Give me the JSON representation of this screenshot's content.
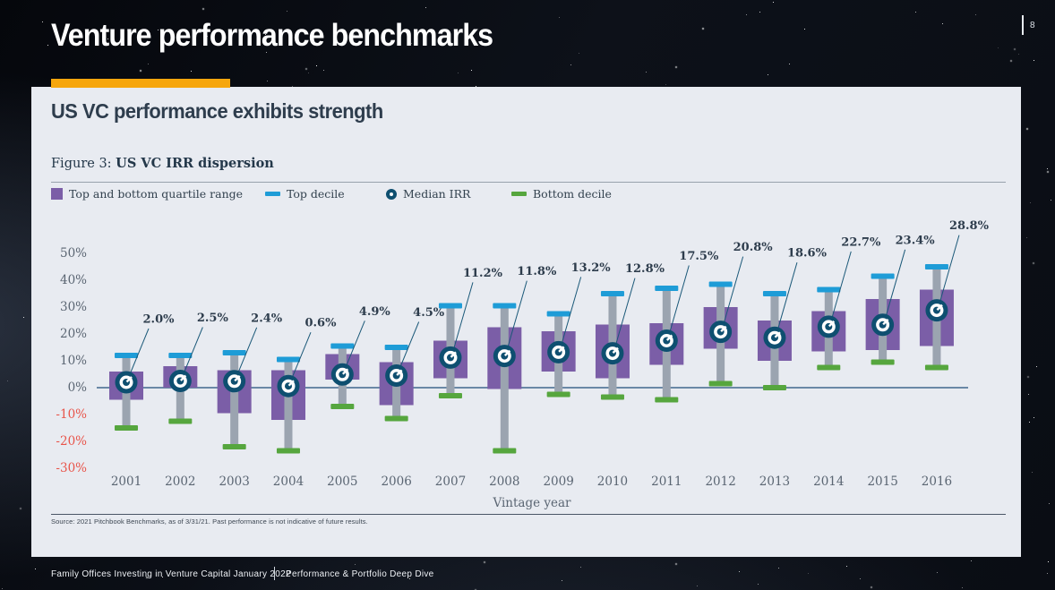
{
  "slide": {
    "title": "Venture performance benchmarks",
    "page_number": "8",
    "heading": "US VC performance exhibits strength",
    "figure_label": "Figure 3: ",
    "figure_title": "US VC IRR dispersion",
    "source": "Source: 2021 Pitchbook Benchmarks, as of 3/31/21. Past performance is not indicative of future results.",
    "footer_left": "Family Offices Investing in Venture Capital January 2022",
    "footer_right": "Performance & Portfolio Deep Dive"
  },
  "legend": [
    {
      "key": "quartile-range",
      "label": "Top and bottom quartile range",
      "color": "#7b5ea7"
    },
    {
      "key": "top-decile",
      "label": "Top decile",
      "color": "#1e9cd7"
    },
    {
      "key": "median-irr",
      "label": "Median IRR",
      "color": "#0e4f70"
    },
    {
      "key": "bottom-decile",
      "label": "Bottom decile",
      "color": "#56a63e"
    }
  ],
  "colors": {
    "accent_orange": "#f6a60d",
    "card_bg": "#e8ebf1",
    "box_purple": "#7b5ea7",
    "top_decile_blue": "#1e9cd7",
    "bottom_decile_green": "#56a63e",
    "median_ring_navy": "#0e4f70",
    "whisker_grey": "#9ba4b0",
    "zero_line": "#1f4e79",
    "callout_line": "#1a5878",
    "axis_text": "#5a6572",
    "axis_text_negative": "#e8544a",
    "label_text": "#2d3c4c"
  },
  "chart_data": {
    "type": "boxplot",
    "title": "US VC IRR dispersion",
    "xlabel": "Vintage year",
    "ylabel": "",
    "ylim": [
      -30,
      50
    ],
    "yticks": [
      50,
      40,
      30,
      20,
      10,
      0,
      -10,
      -20,
      -30
    ],
    "grid": false,
    "legend_position": "top",
    "categories": [
      2001,
      2002,
      2003,
      2004,
      2005,
      2006,
      2007,
      2008,
      2009,
      2010,
      2011,
      2012,
      2013,
      2014,
      2015,
      2016
    ],
    "series": [
      {
        "name": "Top decile",
        "values": [
          12,
          12,
          13,
          10.5,
          15.5,
          15,
          30.5,
          30.5,
          27.5,
          35,
          37,
          38.5,
          35,
          36.5,
          41.5,
          45
        ]
      },
      {
        "name": "Top quartile",
        "values": [
          6,
          8,
          6.5,
          6.5,
          12.5,
          9.5,
          17.5,
          22.5,
          21,
          23.5,
          24,
          30,
          25,
          28.5,
          33,
          36.5
        ]
      },
      {
        "name": "Median IRR",
        "values": [
          2.0,
          2.5,
          2.4,
          0.6,
          4.9,
          4.5,
          11.2,
          11.8,
          13.2,
          12.8,
          17.5,
          20.8,
          18.6,
          22.7,
          23.4,
          28.8
        ]
      },
      {
        "name": "Bottom quartile",
        "values": [
          -4.5,
          0,
          -9.5,
          -12,
          3,
          -6.5,
          3.5,
          -0.5,
          6,
          3.5,
          8.5,
          14.5,
          10,
          13.5,
          14,
          15.5
        ]
      },
      {
        "name": "Bottom decile",
        "values": [
          -15,
          -12.5,
          -22,
          -23.5,
          -7,
          -11.5,
          -3,
          -23.5,
          -2.5,
          -3.5,
          -4.5,
          1.5,
          0,
          7.5,
          9.5,
          7.5
        ]
      }
    ],
    "median_labels": [
      "2.0%",
      "2.5%",
      "2.4%",
      "0.6%",
      "4.9%",
      "4.5%",
      "11.2%",
      "11.8%",
      "13.2%",
      "12.8%",
      "17.5%",
      "20.8%",
      "18.6%",
      "22.7%",
      "23.4%",
      "28.8%"
    ]
  }
}
